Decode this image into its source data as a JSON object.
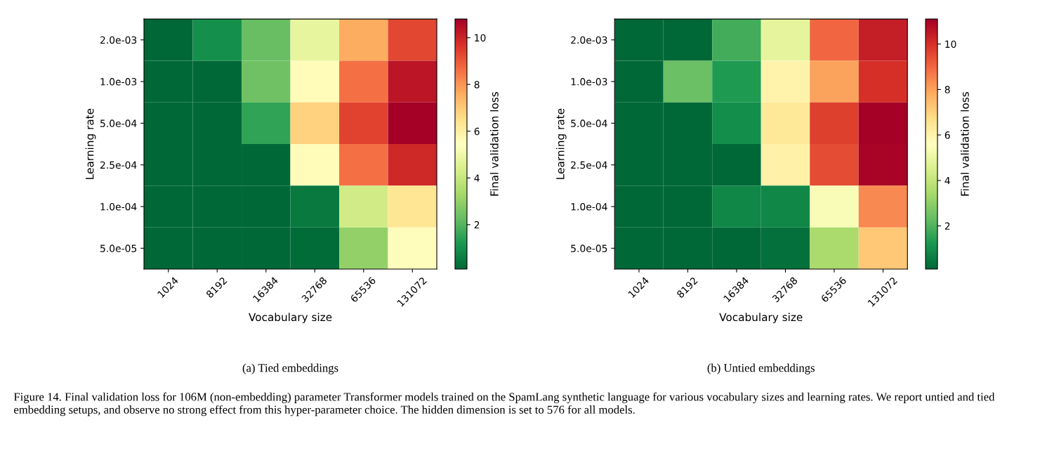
{
  "chart_data": [
    {
      "type": "heatmap",
      "xlabel": "Vocabulary size",
      "ylabel": "Learning rate",
      "clabel": "Final validation loss",
      "categories": [
        "1024",
        "8192",
        "16384",
        "32768",
        "65536",
        "131072"
      ],
      "y_categories": [
        "2.0e-03",
        "1.0e-03",
        "5.0e-04",
        "2.5e-04",
        "1.0e-04",
        "5.0e-05"
      ],
      "cells": [
        [
          0.1,
          1.0,
          2.3,
          4.8,
          7.6,
          9.3
        ],
        [
          0.1,
          0.1,
          2.4,
          5.6,
          8.6,
          10.3
        ],
        [
          0.1,
          0.1,
          1.5,
          6.8,
          9.4,
          10.8
        ],
        [
          0.1,
          0.1,
          0.1,
          5.6,
          8.6,
          9.9
        ],
        [
          0.1,
          0.1,
          0.1,
          0.5,
          4.2,
          6.3
        ],
        [
          0.1,
          0.1,
          0.1,
          0.2,
          3.0,
          5.5
        ]
      ],
      "clim": [
        0.1,
        10.8
      ],
      "cticks": [
        2,
        4,
        6,
        8,
        10
      ],
      "annotations": [
        "(a) Tied embeddings"
      ]
    },
    {
      "type": "heatmap",
      "xlabel": "Vocabulary size",
      "ylabel": "Learning rate",
      "clabel": "Final validation loss",
      "categories": [
        "1024",
        "8192",
        "16384",
        "32768",
        "65536",
        "131072"
      ],
      "y_categories": [
        "2.0e-03",
        "1.0e-03",
        "5.0e-04",
        "2.5e-04",
        "1.0e-04",
        "5.0e-05"
      ],
      "cells": [
        [
          0.1,
          0.1,
          1.8,
          4.9,
          9.0,
          10.4
        ],
        [
          0.1,
          2.4,
          1.3,
          6.0,
          8.0,
          10.0
        ],
        [
          0.1,
          0.1,
          1.0,
          6.4,
          9.7,
          11.1
        ],
        [
          0.1,
          0.1,
          0.1,
          6.1,
          9.5,
          11.0
        ],
        [
          0.1,
          0.1,
          0.8,
          0.8,
          5.4,
          8.4
        ],
        [
          0.1,
          0.1,
          0.1,
          0.3,
          3.5,
          7.2
        ]
      ],
      "clim": [
        0.1,
        11.1
      ],
      "cticks": [
        2,
        4,
        6,
        8,
        10
      ],
      "annotations": [
        "(b) Untied embeddings",
        "Figure 14. Final validation loss for 106M (non-embedding) parameter Transformer models trained on the SpamLang synthetic language for various vocabulary sizes and learning rates. We report untied and tied embedding setups, and observe no strong effect from this hyper-parameter choice. The hidden dimension is set to 576 for all models."
      ]
    }
  ]
}
